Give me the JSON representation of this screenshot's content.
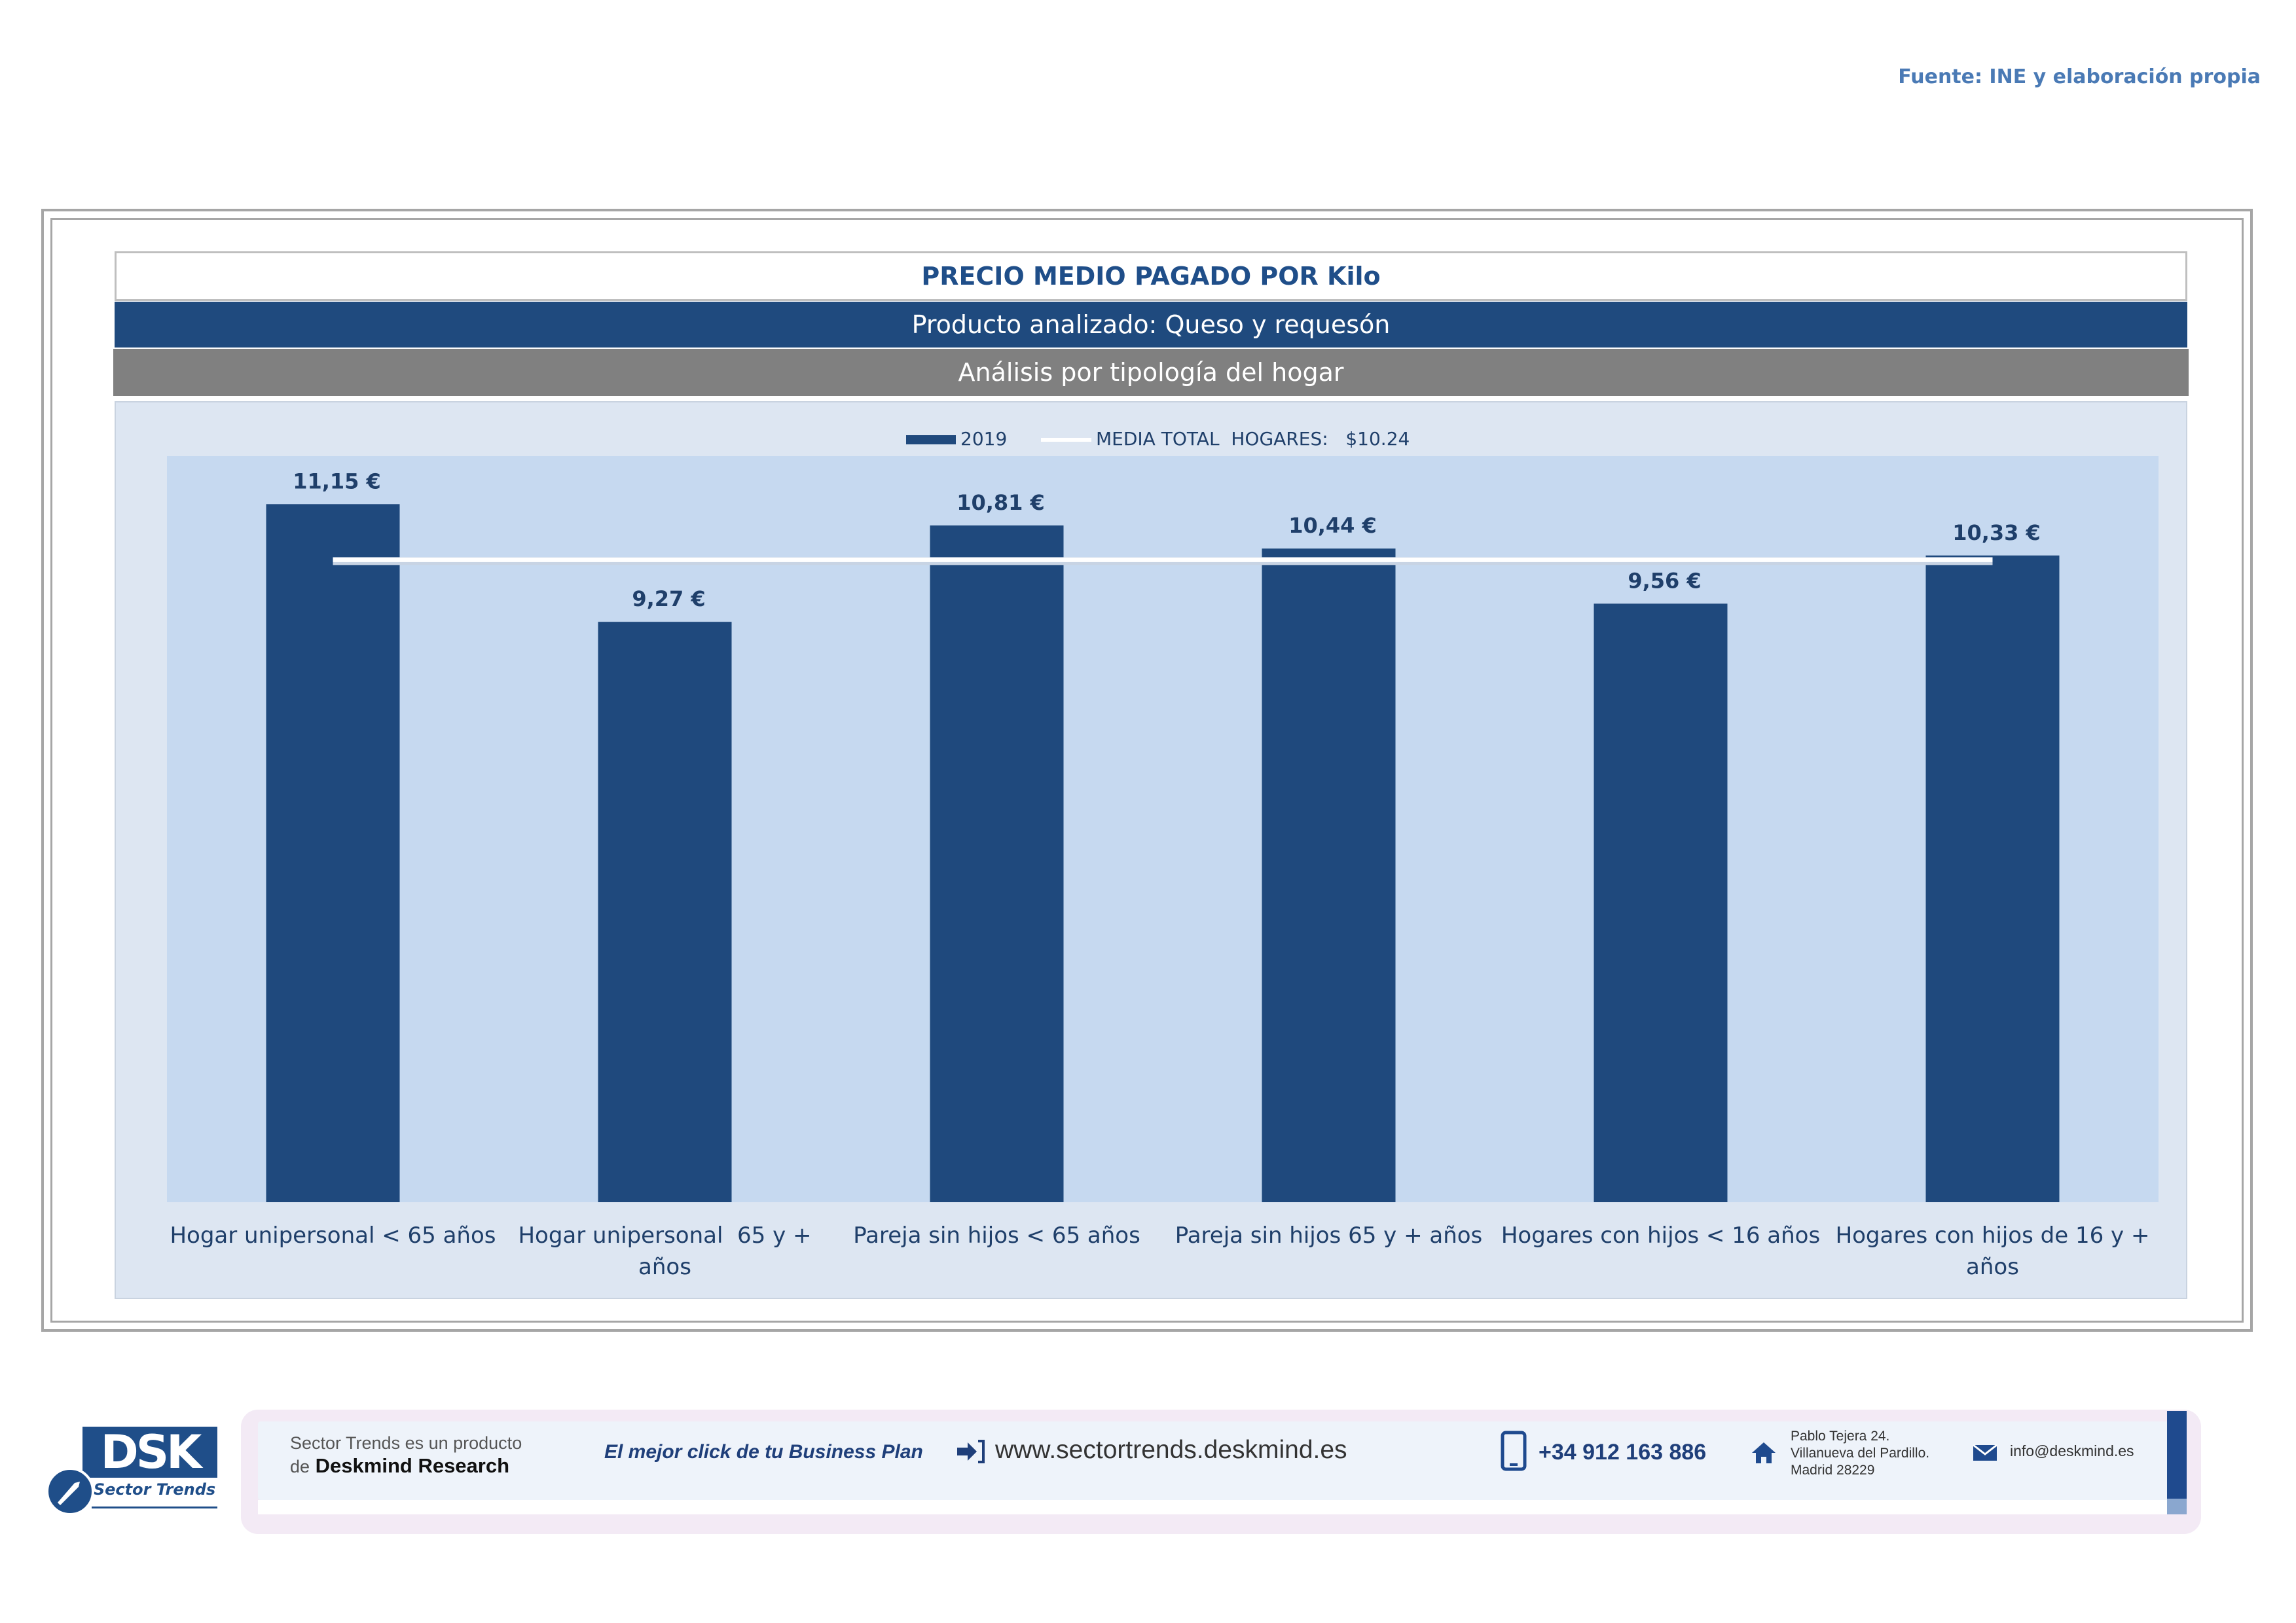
{
  "source": "Fuente: INE y elaboración propia",
  "header": {
    "title": "PRECIO MEDIO PAGADO POR Kilo",
    "product": "Producto analizado: Queso y requesón",
    "analysis": "Análisis por tipología del hogar"
  },
  "colors": {
    "bar": "#1f497d",
    "header_band": "#1f4a7e",
    "analysis_band": "#808080",
    "plot_bg": "#c6d9f0",
    "chart_bg": "#dde6f2",
    "mean_line": "#ffffff"
  },
  "chart_data": {
    "type": "bar",
    "categories": [
      [
        "Hogar unipersonal < 65 años"
      ],
      [
        "Hogar unipersonal  65 y +",
        "años"
      ],
      [
        "Pareja sin hijos < 65 años"
      ],
      [
        "Pareja sin hijos 65 y + años"
      ],
      [
        "Hogares con hijos < 16 años"
      ],
      [
        "Hogares con hijos de 16 y +",
        "años"
      ]
    ],
    "series": [
      {
        "name": "2019",
        "values": [
          11.15,
          9.27,
          10.81,
          10.44,
          9.56,
          10.33
        ],
        "labels": [
          "11,15 €",
          "9,27 €",
          "10,81 €",
          "10,44 €",
          "9,56 €",
          "10,33 €"
        ]
      }
    ],
    "reference_line": {
      "name": "MEDIA TOTAL  HOGARES:   $10.24",
      "value": 10.24
    },
    "ylim": [
      0,
      12
    ],
    "grid": false,
    "legend_position": "top-center"
  },
  "footer": {
    "logo_text": "DSK",
    "logo_sub": "Sector Trends",
    "tagline_line1": "Sector Trends es un producto",
    "tagline_pre": "de",
    "tagline_brand": "Deskmind Research",
    "slogan": "El mejor click de tu Business Plan",
    "website": "www.sectortrends.deskmind.es",
    "phone": "+34 912 163 886",
    "address_line1": "Pablo Tejera 24.",
    "address_line2": "Villanueva del Pardillo.",
    "address_line3": "Madrid 28229",
    "email": "info@deskmind.es"
  }
}
